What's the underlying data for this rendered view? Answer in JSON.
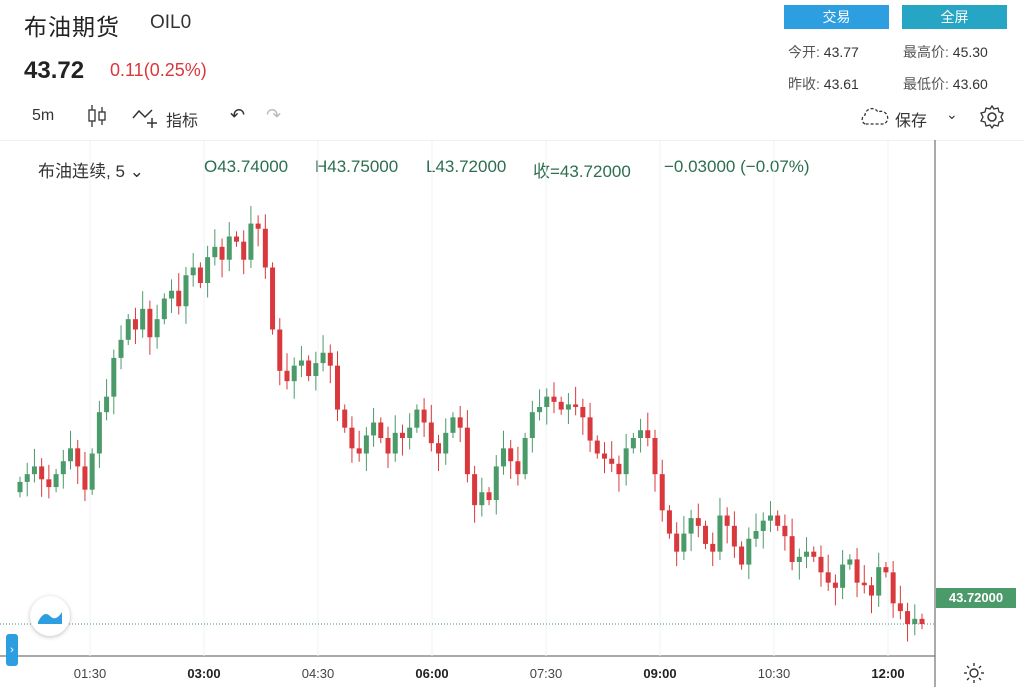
{
  "header": {
    "title": "布油期货",
    "symbol": "OIL0",
    "price": "43.72",
    "change": "0.11(0.25%)"
  },
  "buttons": {
    "trade": "交易",
    "fullscreen": "全屏"
  },
  "stats": {
    "open_label": "今开:",
    "open": "43.77",
    "high_label": "最高价:",
    "high": "45.30",
    "prev_label": "昨收:",
    "prev": "43.61",
    "low_label": "最低价:",
    "low": "43.60"
  },
  "toolbar": {
    "interval": "5m",
    "indicators": "指标",
    "save": "保存"
  },
  "legend": {
    "name": "布油连续, 5",
    "open": "O43.74000",
    "high": "H43.75000",
    "low": "L43.72000",
    "close": "收=43.72000",
    "change": "−0.03000 (−0.07%)"
  },
  "colors": {
    "up": "#4a9a6a",
    "down": "#d9383c",
    "accent": "#2d9ee0"
  },
  "chart_data": {
    "type": "candlestick",
    "title": "布油连续, 5",
    "x_ticks": [
      "01:30",
      "03:00",
      "04:30",
      "06:00",
      "07:30",
      "09:00",
      "10:30",
      "12:00"
    ],
    "x_ticks_bold": [
      "03:00",
      "06:00",
      "09:00",
      "12:00"
    ],
    "ylim": [
      43.6,
      45.4
    ],
    "last_price_label": "43.72000",
    "last_price": 43.72,
    "closes": [
      44.27,
      44.3,
      44.33,
      44.28,
      44.25,
      44.3,
      44.35,
      44.4,
      44.33,
      44.24,
      44.38,
      44.54,
      44.6,
      44.75,
      44.82,
      44.9,
      44.86,
      44.94,
      44.83,
      44.9,
      44.98,
      45.01,
      44.95,
      45.07,
      45.1,
      45.04,
      45.14,
      45.18,
      45.13,
      45.22,
      45.2,
      45.13,
      45.27,
      45.25,
      45.1,
      44.86,
      44.7,
      44.66,
      44.72,
      44.74,
      44.68,
      44.73,
      44.77,
      44.72,
      44.55,
      44.48,
      44.4,
      44.38,
      44.45,
      44.5,
      44.44,
      44.38,
      44.46,
      44.44,
      44.48,
      44.55,
      44.5,
      44.42,
      44.38,
      44.46,
      44.52,
      44.48,
      44.3,
      44.18,
      44.23,
      44.2,
      44.33,
      44.4,
      44.35,
      44.3,
      44.44,
      44.54,
      44.56,
      44.6,
      44.58,
      44.55,
      44.57,
      44.56,
      44.52,
      44.43,
      44.38,
      44.36,
      44.34,
      44.3,
      44.4,
      44.44,
      44.47,
      44.44,
      44.3,
      44.16,
      44.07,
      44.0,
      44.07,
      44.13,
      44.1,
      44.03,
      44.0,
      44.14,
      44.1,
      44.02,
      43.95,
      44.05,
      44.08,
      44.12,
      44.14,
      44.1,
      44.06,
      43.96,
      43.98,
      44.0,
      43.98,
      43.92,
      43.88,
      43.86,
      43.95,
      43.97,
      43.88,
      43.87,
      43.83,
      43.94,
      43.92,
      43.8,
      43.77,
      43.72,
      43.74,
      43.72
    ]
  }
}
